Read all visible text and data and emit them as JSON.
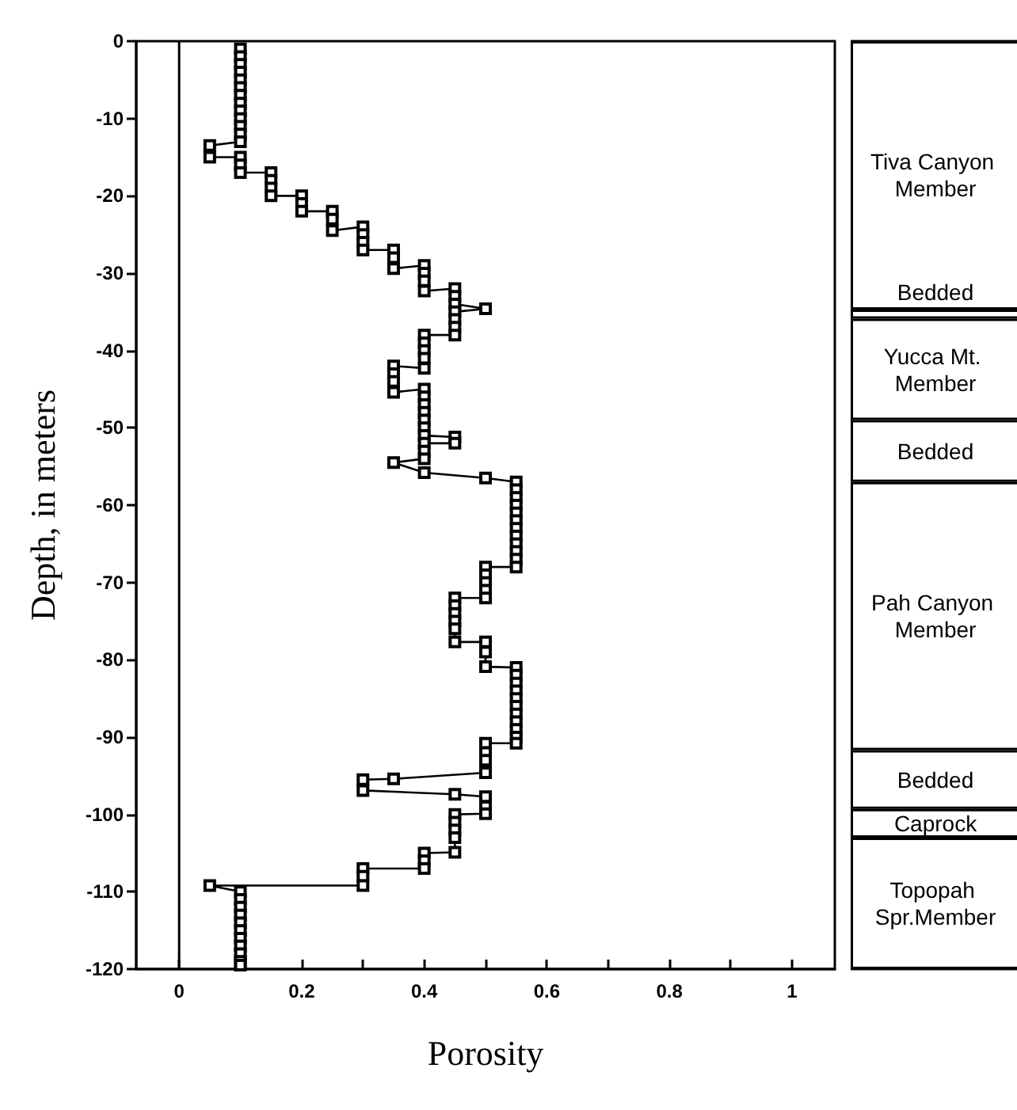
{
  "chart_data": [
    {
      "type": "line",
      "xlabel": "Porosity",
      "ylabel": "Depth, in meters",
      "x": [
        0.1,
        0.1,
        0.1,
        0.1,
        0.1,
        0.1,
        0.1,
        0.1,
        0.1,
        0.1,
        0.1,
        0.1,
        0.1,
        0.05,
        0.05,
        0.1,
        0.1,
        0.1,
        0.15,
        0.15,
        0.15,
        0.15,
        0.2,
        0.2,
        0.2,
        0.25,
        0.25,
        0.25,
        0.3,
        0.3,
        0.3,
        0.3,
        0.35,
        0.35,
        0.35,
        0.4,
        0.4,
        0.4,
        0.4,
        0.45,
        0.45,
        0.45,
        0.5,
        0.45,
        0.45,
        0.45,
        0.45,
        0.4,
        0.4,
        0.4,
        0.4,
        0.4,
        0.35,
        0.35,
        0.35,
        0.35,
        0.4,
        0.4,
        0.4,
        0.4,
        0.4,
        0.4,
        0.4,
        0.45,
        0.45,
        0.4,
        0.4,
        0.4,
        0.35,
        0.4,
        0.5,
        0.55,
        0.55,
        0.55,
        0.55,
        0.55,
        0.55,
        0.55,
        0.55,
        0.55,
        0.55,
        0.55,
        0.55,
        0.5,
        0.5,
        0.5,
        0.5,
        0.5,
        0.45,
        0.45,
        0.45,
        0.45,
        0.45,
        0.45,
        0.5,
        0.5,
        0.5,
        0.55,
        0.55,
        0.55,
        0.55,
        0.55,
        0.55,
        0.55,
        0.55,
        0.55,
        0.55,
        0.55,
        0.5,
        0.5,
        0.5,
        0.5,
        0.35,
        0.3,
        0.3,
        0.45,
        0.5,
        0.5,
        0.5,
        0.45,
        0.45,
        0.45,
        0.45,
        0.45,
        0.4,
        0.4,
        0.4,
        0.3,
        0.3,
        0.3,
        0.05,
        0.1,
        0.1,
        0.1,
        0.1,
        0.1,
        0.1,
        0.1,
        0.1,
        0.1,
        0.1,
        0.1
      ],
      "values": [
        -1,
        -2,
        -3,
        -4,
        -5,
        -6,
        -7,
        -8,
        -9,
        -10,
        -11,
        -12,
        -13,
        -13.5,
        -15,
        -15,
        -16,
        -17,
        -17,
        -18,
        -19,
        -20,
        -20,
        -21,
        -22,
        -22,
        -23,
        -24.5,
        -24,
        -25,
        -26,
        -27,
        -27,
        -28,
        -29.4,
        -29,
        -30,
        -31,
        -32.3,
        -32,
        -33,
        -34,
        -34.6,
        -35,
        -36,
        -37,
        -38,
        -38,
        -39,
        -40,
        -41,
        -42.3,
        -42,
        -43,
        -44,
        -45.4,
        -45,
        -46,
        -47,
        -48,
        -49,
        -50,
        -51,
        -51.2,
        -52,
        -52,
        -53,
        -54,
        -54.5,
        -55.8,
        -56.5,
        -57,
        -58,
        -59,
        -60,
        -61,
        -62,
        -63,
        -64,
        -65,
        -66,
        -67,
        -68,
        -68,
        -69,
        -70,
        -71,
        -72,
        -72,
        -73,
        -74,
        -75,
        -76,
        -77.7,
        -77.7,
        -79,
        -80.9,
        -81,
        -82,
        -83,
        -84,
        -85,
        -86,
        -87,
        -88,
        -89,
        -90,
        -90.8,
        -90.8,
        -92,
        -93,
        -94.6,
        -95.4,
        -95.5,
        -96.9,
        -97.4,
        -97.7,
        -99,
        -99.9,
        -100,
        -101,
        -102,
        -103,
        -104.9,
        -105,
        -106,
        -107,
        -107,
        -108,
        -109.2,
        -109.2,
        -110,
        -111,
        -112,
        -113,
        -114,
        -115,
        -116,
        -117,
        -118,
        -119,
        -119.5
      ],
      "color": "#000000",
      "marker": "square",
      "line_style": "solid",
      "xlim": [
        -0.07,
        1.07
      ],
      "xticks": [
        0,
        {
          "value": 0.1,
          "label": null
        },
        0.2,
        {
          "value": 0.3,
          "label": null
        },
        0.4,
        {
          "value": 0.5,
          "label": null
        },
        0.6,
        {
          "value": 0.7,
          "label": null
        },
        0.8,
        {
          "value": 0.9,
          "label": null
        },
        1
      ],
      "ylim": [
        -120,
        0
      ],
      "yticks": [
        0,
        -10,
        -20,
        -30,
        -40,
        -50,
        -60,
        -70,
        -80,
        -90,
        -100,
        -110,
        -120
      ],
      "ref_lines": [
        {
          "axis": "x",
          "value": 0
        }
      ]
    },
    {
      "type": "bar",
      "stacked": true,
      "categories": [
        null
      ],
      "ylim": [
        -120,
        0
      ],
      "series": [
        {
          "name": "Tiva Canyon Member",
          "color": "#ffffff",
          "values": [
            -34.7
          ]
        },
        {
          "name": "Bedded",
          "color": "#ffffff",
          "values": [
            -1.2
          ]
        },
        {
          "name": "Yucca Mt. Member",
          "color": "#ffffff",
          "values": [
            -13.1
          ]
        },
        {
          "name": "Bedded",
          "color": "#ffffff",
          "values": [
            -8
          ]
        },
        {
          "name": "Pah Canyon Member",
          "color": "#ffffff",
          "values": [
            -34.7
          ]
        },
        {
          "name": "Bedded",
          "color": "#ffffff",
          "values": [
            -7.6
          ]
        },
        {
          "name": "Caprock",
          "color": "#ffffff",
          "values": [
            -3.7
          ]
        },
        {
          "name": "Topopah Spr.Member",
          "color": "#ffffff",
          "values": [
            -17
          ]
        }
      ]
    }
  ]
}
